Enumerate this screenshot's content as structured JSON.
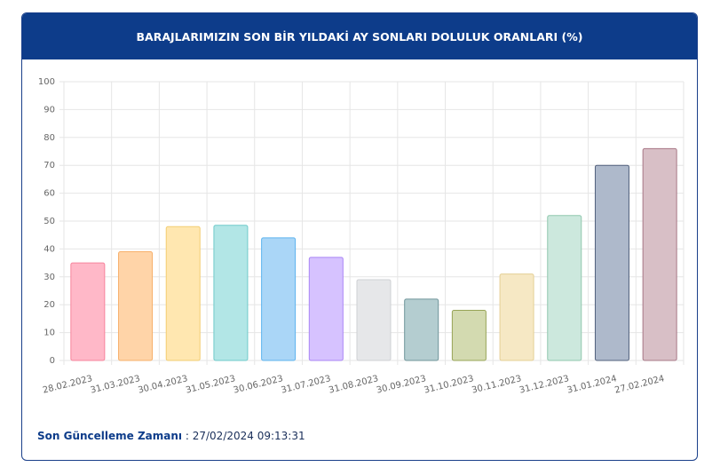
{
  "chart_data": {
    "type": "bar",
    "title": "BARAJLARIMIZIN SON BİR YILDAKİ AY SONLARI DOLULUK ORANLARI (%)",
    "categories": [
      "28.02.2023",
      "31.03.2023",
      "30.04.2023",
      "31.05.2023",
      "30.06.2023",
      "31.07.2023",
      "31.08.2023",
      "30.09.2023",
      "31.10.2023",
      "30.11.2023",
      "31.12.2023",
      "31.01.2024",
      "27.02.2024"
    ],
    "values": [
      35,
      39,
      48,
      48.5,
      44,
      37,
      29,
      22,
      18,
      31,
      52,
      70,
      76
    ],
    "colors": [
      "#ffb8c8",
      "#ffd4a8",
      "#ffe7b0",
      "#b2e6e6",
      "#aad6f7",
      "#d6c2ff",
      "#e6e7e9",
      "#b4cdd0",
      "#d3dab0",
      "#f6e8c4",
      "#cce8dd",
      "#aeb9cb",
      "#d8bfc6"
    ],
    "border_colors": [
      "#f7839c",
      "#f7b06a",
      "#f2cd72",
      "#6fcaca",
      "#5db3ee",
      "#a985f5",
      "#cfd0d4",
      "#6f959a",
      "#97a456",
      "#e4cf95",
      "#8fc7ae",
      "#52617d",
      "#a87887"
    ],
    "ylim": [
      0,
      100
    ],
    "yticks": [
      0,
      10,
      20,
      30,
      40,
      50,
      60,
      70,
      80,
      90,
      100
    ],
    "grid": true
  },
  "footer": {
    "label": "Son Güncelleme Zamanı",
    "value": ": 27/02/2024 09:13:31"
  }
}
